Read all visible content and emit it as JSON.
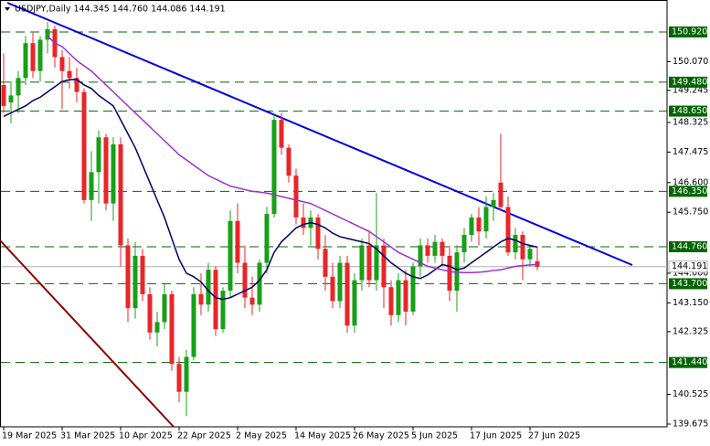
{
  "chart_data": {
    "type": "candlestick",
    "title": "USDJPY,Daily  144.345 144.760 144.086 144.191",
    "categories": [
      "19 Mar 2025",
      null,
      null,
      null,
      null,
      null,
      null,
      null,
      "31 Mar 2025",
      null,
      null,
      null,
      null,
      null,
      null,
      null,
      "10 Apr 2025",
      null,
      null,
      null,
      null,
      null,
      null,
      null,
      "22 Apr 2025",
      null,
      null,
      null,
      null,
      null,
      null,
      null,
      "2 May 2025",
      null,
      null,
      null,
      null,
      null,
      null,
      null,
      "14 May 2025",
      null,
      null,
      null,
      null,
      null,
      null,
      null,
      "26 May 2025",
      null,
      null,
      null,
      null,
      null,
      null,
      null,
      "5 Jun 2025",
      null,
      null,
      null,
      null,
      null,
      null,
      null,
      "17 Jun 2025",
      null,
      null,
      null,
      null,
      null,
      null,
      null,
      "27 Jun 2025",
      null
    ],
    "open": [
      149.4,
      148.9,
      149.1,
      149.6,
      150.6,
      149.8,
      150.7,
      151.0,
      150.2,
      149.8,
      149.6,
      149.2,
      146.1,
      146.9,
      147.9,
      146.0,
      147.7,
      144.8,
      143.0,
      144.5,
      143.4,
      142.3,
      142.6,
      143.4,
      141.4,
      140.6,
      141.6,
      143.4,
      143.1,
      144.1,
      142.4,
      143.5,
      145.5,
      144.3,
      143.3,
      143.1,
      144.3,
      145.7,
      148.4,
      147.6,
      146.8,
      145.6,
      145.3,
      145.6,
      144.7,
      143.9,
      143.2,
      144.3,
      142.5,
      143.8,
      144.8,
      143.8,
      144.8,
      143.6,
      142.8,
      143.8,
      142.9,
      144.2,
      144.8,
      144.5,
      144.9,
      144.5,
      143.5,
      144.6,
      145.1,
      145.6,
      145.2,
      145.9,
      146.6,
      145.9,
      144.6,
      145.1,
      144.4,
      144.345
    ],
    "high": [
      150.3,
      149.5,
      149.8,
      150.8,
      150.9,
      150.8,
      151.2,
      151.1,
      150.4,
      150.2,
      149.9,
      149.3,
      147.5,
      148.1,
      148.0,
      147.9,
      147.9,
      145.0,
      144.9,
      144.7,
      143.6,
      142.9,
      143.7,
      143.5,
      141.6,
      141.8,
      143.6,
      144.0,
      144.3,
      144.2,
      143.6,
      145.8,
      146.0,
      144.8,
      143.9,
      144.4,
      145.9,
      148.6,
      148.6,
      147.7,
      147.0,
      146.0,
      145.8,
      145.7,
      145.1,
      144.3,
      144.5,
      144.5,
      144.0,
      145.0,
      145.2,
      146.3,
      145.0,
      143.8,
      144.0,
      144.1,
      144.3,
      145.0,
      145.0,
      145.1,
      145.0,
      144.8,
      144.8,
      145.3,
      145.7,
      145.9,
      146.2,
      146.3,
      148.0,
      146.2,
      145.3,
      145.2,
      144.8,
      144.76
    ],
    "low": [
      148.6,
      148.3,
      148.6,
      149.4,
      149.6,
      149.5,
      150.3,
      149.9,
      148.7,
      149.3,
      148.9,
      146.0,
      145.5,
      146.0,
      145.8,
      145.5,
      144.2,
      142.6,
      142.7,
      143.2,
      142.1,
      141.9,
      142.4,
      141.2,
      140.3,
      139.9,
      141.5,
      142.8,
      142.9,
      142.2,
      142.3,
      143.3,
      144.0,
      143.0,
      142.8,
      142.9,
      144.0,
      145.6,
      147.4,
      146.6,
      145.4,
      145.1,
      144.8,
      144.4,
      143.5,
      143.0,
      143.0,
      142.3,
      142.3,
      143.5,
      143.6,
      143.5,
      143.0,
      142.5,
      142.6,
      142.5,
      142.8,
      143.9,
      144.3,
      144.3,
      144.2,
      143.2,
      142.9,
      144.3,
      144.9,
      144.8,
      145.0,
      145.5,
      145.8,
      144.5,
      144.4,
      143.8,
      144.2,
      144.086
    ],
    "close": [
      148.8,
      149.1,
      149.6,
      150.6,
      149.8,
      150.7,
      151.0,
      150.2,
      149.8,
      149.6,
      149.2,
      146.1,
      146.9,
      147.9,
      146.0,
      147.7,
      144.8,
      143.0,
      144.5,
      143.4,
      142.3,
      142.6,
      143.4,
      141.4,
      140.6,
      141.6,
      143.4,
      143.1,
      144.1,
      142.4,
      143.5,
      145.5,
      144.3,
      143.3,
      143.1,
      144.3,
      145.7,
      148.4,
      147.6,
      146.8,
      145.6,
      145.3,
      145.6,
      144.7,
      143.9,
      143.2,
      144.3,
      142.5,
      143.8,
      144.8,
      143.8,
      144.8,
      143.6,
      142.8,
      143.8,
      142.9,
      144.2,
      144.8,
      144.5,
      144.9,
      144.5,
      143.5,
      144.6,
      145.1,
      145.6,
      145.2,
      145.9,
      146.1,
      145.9,
      144.6,
      145.1,
      144.4,
      144.7,
      144.191
    ],
    "up_color": "#17a017",
    "down_color": "#e8262a",
    "series": [
      {
        "color": "#000066",
        "values": [
          148.5,
          148.6,
          148.7,
          148.8,
          148.95,
          149.05,
          149.2,
          149.35,
          149.5,
          149.55,
          149.56,
          149.4,
          149.3,
          149.1,
          148.95,
          148.8,
          148.4,
          148.0,
          147.6,
          147.1,
          146.6,
          146.1,
          145.6,
          145.0,
          144.4,
          144.0,
          143.9,
          143.75,
          143.5,
          143.3,
          143.25,
          143.3,
          143.4,
          143.5,
          143.6,
          143.8,
          144.1,
          144.6,
          144.9,
          145.1,
          145.3,
          145.4,
          145.45,
          145.4,
          145.3,
          145.15,
          145.05,
          145.0,
          144.95,
          144.9,
          144.85,
          144.7,
          144.5,
          144.3,
          144.15,
          144.0,
          143.9,
          143.85,
          143.95,
          144.1,
          144.25,
          144.2,
          144.1,
          144.15,
          144.3,
          144.45,
          144.6,
          144.75,
          144.9,
          145.0,
          144.95,
          144.85,
          144.8,
          144.75
        ]
      },
      {
        "color": "#9932cc",
        "values": [
          null,
          null,
          null,
          null,
          null,
          null,
          150.8,
          150.6,
          150.5,
          150.3,
          150.1,
          149.95,
          149.8,
          149.6,
          149.4,
          149.2,
          149.0,
          148.8,
          148.6,
          148.4,
          148.2,
          148.0,
          147.8,
          147.6,
          147.4,
          147.25,
          147.1,
          146.95,
          146.8,
          146.7,
          146.6,
          146.5,
          146.45,
          146.4,
          146.35,
          146.33,
          146.3,
          146.25,
          146.2,
          146.15,
          146.1,
          146.05,
          146.0,
          145.9,
          145.8,
          145.7,
          145.6,
          145.5,
          145.4,
          145.3,
          145.2,
          145.05,
          144.9,
          144.75,
          144.6,
          144.5,
          144.4,
          144.3,
          144.2,
          144.15,
          144.1,
          144.05,
          144.03,
          144.02,
          144.02,
          144.03,
          144.05,
          144.08,
          144.1,
          144.15,
          144.2,
          144.22,
          144.24,
          144.25
        ]
      }
    ],
    "ylim": [
      139.596,
      151.837
    ],
    "yticks": [
      {
        "value": 150.07,
        "label": "150.070"
      },
      149.245,
      148.325,
      147.475,
      {
        "value": 146.6,
        "label": "146.600"
      },
      {
        "value": 145.75,
        "label": "145.750"
      },
      {
        "value": 144.0,
        "label": "144.000"
      },
      {
        "value": 143.15,
        "label": "143.150"
      },
      142.325,
      140.525,
      139.675
    ],
    "levels": [
      {
        "value": 150.92,
        "label": "150.920"
      },
      {
        "value": 149.48,
        "label": "149.480"
      },
      {
        "value": 148.65,
        "label": "148.650"
      },
      {
        "value": 146.35,
        "label": "146.350"
      },
      {
        "value": 144.76,
        "label": "144.760"
      },
      {
        "value": 143.7,
        "label": "143.700"
      },
      {
        "value": 141.44,
        "label": "141.440"
      }
    ],
    "level_color": "#006400",
    "bid": 144.191
  }
}
